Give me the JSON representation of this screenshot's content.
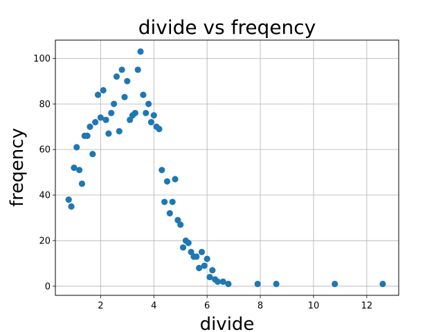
{
  "chart_data": {
    "type": "scatter",
    "title": "divide vs freqency",
    "xlabel": "divide",
    "ylabel": "freqency",
    "xlim": [
      0.3,
      13.2
    ],
    "ylim": [
      -4,
      108
    ],
    "xticks": [
      2,
      4,
      6,
      8,
      10,
      12
    ],
    "yticks": [
      0,
      20,
      40,
      60,
      80,
      100
    ],
    "grid": true,
    "color": "#1f77b4",
    "points": [
      {
        "x": 0.8,
        "y": 38
      },
      {
        "x": 0.9,
        "y": 35
      },
      {
        "x": 1.0,
        "y": 52
      },
      {
        "x": 1.1,
        "y": 61
      },
      {
        "x": 1.2,
        "y": 51
      },
      {
        "x": 1.3,
        "y": 45
      },
      {
        "x": 1.4,
        "y": 66
      },
      {
        "x": 1.5,
        "y": 66
      },
      {
        "x": 1.6,
        "y": 70
      },
      {
        "x": 1.7,
        "y": 58
      },
      {
        "x": 1.8,
        "y": 72
      },
      {
        "x": 1.9,
        "y": 84
      },
      {
        "x": 2.0,
        "y": 74
      },
      {
        "x": 2.1,
        "y": 86
      },
      {
        "x": 2.2,
        "y": 73
      },
      {
        "x": 2.3,
        "y": 67
      },
      {
        "x": 2.4,
        "y": 76
      },
      {
        "x": 2.5,
        "y": 80
      },
      {
        "x": 2.6,
        "y": 92
      },
      {
        "x": 2.7,
        "y": 68
      },
      {
        "x": 2.8,
        "y": 95
      },
      {
        "x": 2.9,
        "y": 83
      },
      {
        "x": 3.0,
        "y": 90
      },
      {
        "x": 3.1,
        "y": 73
      },
      {
        "x": 3.2,
        "y": 75
      },
      {
        "x": 3.3,
        "y": 76
      },
      {
        "x": 3.4,
        "y": 95
      },
      {
        "x": 3.5,
        "y": 103
      },
      {
        "x": 3.6,
        "y": 84
      },
      {
        "x": 3.7,
        "y": 76
      },
      {
        "x": 3.8,
        "y": 80
      },
      {
        "x": 3.9,
        "y": 72
      },
      {
        "x": 4.0,
        "y": 75
      },
      {
        "x": 4.1,
        "y": 70
      },
      {
        "x": 4.2,
        "y": 69
      },
      {
        "x": 4.3,
        "y": 51
      },
      {
        "x": 4.4,
        "y": 37
      },
      {
        "x": 4.5,
        "y": 46
      },
      {
        "x": 4.6,
        "y": 32
      },
      {
        "x": 4.7,
        "y": 37
      },
      {
        "x": 4.8,
        "y": 47
      },
      {
        "x": 4.9,
        "y": 29
      },
      {
        "x": 5.0,
        "y": 27
      },
      {
        "x": 5.1,
        "y": 17
      },
      {
        "x": 5.2,
        "y": 20
      },
      {
        "x": 5.3,
        "y": 19
      },
      {
        "x": 5.4,
        "y": 15
      },
      {
        "x": 5.5,
        "y": 13
      },
      {
        "x": 5.6,
        "y": 13
      },
      {
        "x": 5.7,
        "y": 8
      },
      {
        "x": 5.8,
        "y": 15
      },
      {
        "x": 5.9,
        "y": 9
      },
      {
        "x": 6.0,
        "y": 12
      },
      {
        "x": 6.1,
        "y": 4
      },
      {
        "x": 6.2,
        "y": 7
      },
      {
        "x": 6.3,
        "y": 3
      },
      {
        "x": 6.4,
        "y": 2
      },
      {
        "x": 6.6,
        "y": 2
      },
      {
        "x": 6.8,
        "y": 1
      },
      {
        "x": 7.9,
        "y": 1
      },
      {
        "x": 8.6,
        "y": 1
      },
      {
        "x": 10.8,
        "y": 1
      },
      {
        "x": 12.6,
        "y": 1
      }
    ]
  }
}
